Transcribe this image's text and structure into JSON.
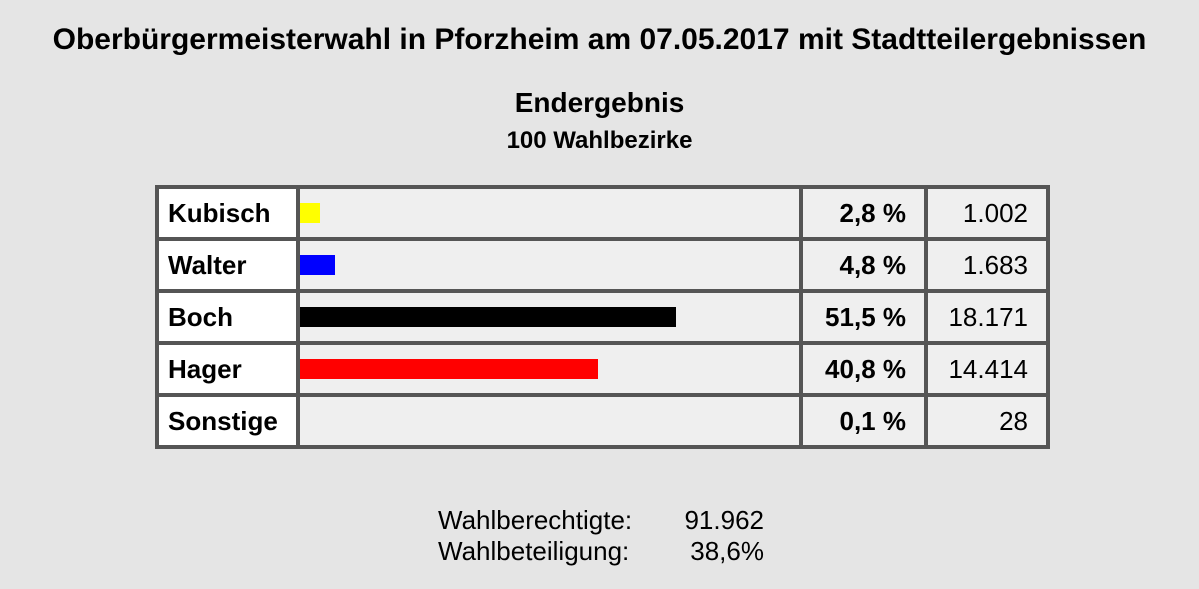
{
  "title": "Oberbürgermeisterwahl in Pforzheim am 07.05.2017 mit Stadtteilergebnissen",
  "subtitle": "Endergebnis",
  "subsubtitle": "100 Wahlbezirke",
  "rows": [
    {
      "name": "Kubisch",
      "percent_label": "2,8 %",
      "votes": "1.002",
      "color": "#ffff00"
    },
    {
      "name": "Walter",
      "percent_label": "4,8 %",
      "votes": "1.683",
      "color": "#0000ff"
    },
    {
      "name": "Boch",
      "percent_label": "51,5 %",
      "votes": "18.171",
      "color": "#000000"
    },
    {
      "name": "Hager",
      "percent_label": "40,8 %",
      "votes": "14.414",
      "color": "#ff0000"
    },
    {
      "name": "Sonstige",
      "percent_label": "0,1 %",
      "votes": "28",
      "color": ""
    }
  ],
  "footer": {
    "eligible_label": "Wahlberechtigte:",
    "eligible_value": "91.962",
    "turnout_label": "Wahlbeteiligung:",
    "turnout_value": "38,6%"
  },
  "chart_data": {
    "type": "bar",
    "title": "Endergebnis",
    "subtitle": "100 Wahlbezirke",
    "categories": [
      "Kubisch",
      "Walter",
      "Boch",
      "Hager",
      "Sonstige"
    ],
    "values": [
      2.8,
      4.8,
      51.5,
      40.8,
      0.1
    ],
    "votes": [
      1002,
      1683,
      18171,
      14414,
      28
    ],
    "colors": [
      "#ffff00",
      "#0000ff",
      "#000000",
      "#ff0000",
      ""
    ],
    "orientation": "horizontal",
    "unit": "%"
  }
}
